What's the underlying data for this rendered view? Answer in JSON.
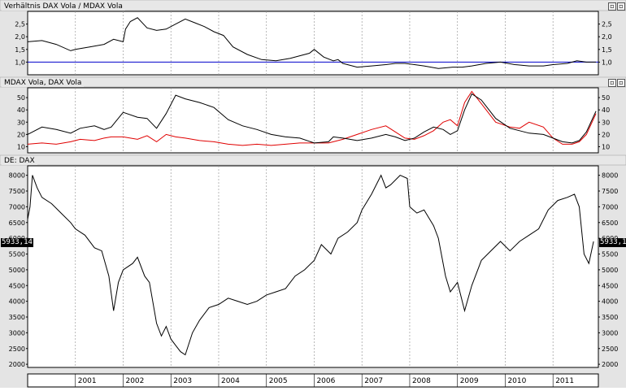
{
  "panels": {
    "ratio": {
      "title": "Verhältnis DAX Vola / MDAX Vola"
    },
    "vola": {
      "title": "MDAX Vola, DAX Vola"
    },
    "dax": {
      "title": "DE: DAX",
      "last_value": "5933,14"
    }
  },
  "x_axis": {
    "years": [
      "2001",
      "2002",
      "2003",
      "2004",
      "2005",
      "2006",
      "2007",
      "2008",
      "2009",
      "2010",
      "2011"
    ]
  },
  "colors": {
    "dax_vola": "#000000",
    "mdax_vola": "#e00000",
    "reference_line": "#0000cc",
    "grid": "#9a9a9a",
    "panel_bg": "#ffffff"
  },
  "chart_data": [
    {
      "type": "line",
      "title": "Verhältnis DAX Vola / MDAX Vola",
      "ylim": [
        0.5,
        3.0
      ],
      "yticks": [
        "1,0",
        "1,5",
        "2,0",
        "2,5"
      ],
      "reference_line": 1.0,
      "x": [
        2000.0,
        2000.3,
        2000.6,
        2000.9,
        2001.0,
        2001.3,
        2001.6,
        2001.8,
        2002.0,
        2002.05,
        2002.15,
        2002.3,
        2002.5,
        2002.7,
        2002.9,
        2003.1,
        2003.3,
        2003.5,
        2003.7,
        2003.9,
        2004.1,
        2004.3,
        2004.6,
        2004.9,
        2005.2,
        2005.5,
        2005.7,
        2005.9,
        2006.0,
        2006.2,
        2006.4,
        2006.5,
        2006.6,
        2006.9,
        2007.2,
        2007.5,
        2007.7,
        2007.9,
        2008.1,
        2008.3,
        2008.6,
        2008.9,
        2009.1,
        2009.3,
        2009.6,
        2009.9,
        2010.2,
        2010.5,
        2010.8,
        2011.0,
        2011.3,
        2011.5,
        2011.7,
        2011.9
      ],
      "series": [
        {
          "values": [
            1.8,
            1.85,
            1.7,
            1.45,
            1.5,
            1.6,
            1.7,
            1.9,
            1.8,
            2.3,
            2.6,
            2.75,
            2.35,
            2.25,
            2.3,
            2.5,
            2.7,
            2.55,
            2.4,
            2.2,
            2.05,
            1.6,
            1.3,
            1.1,
            1.05,
            1.15,
            1.25,
            1.35,
            1.5,
            1.2,
            1.05,
            1.1,
            0.95,
            0.8,
            0.85,
            0.9,
            0.95,
            0.95,
            0.9,
            0.85,
            0.75,
            0.8,
            0.8,
            0.85,
            0.95,
            1.0,
            0.9,
            0.85,
            0.85,
            0.9,
            0.95,
            1.05,
            1.0,
            1.0
          ]
        }
      ]
    },
    {
      "type": "line",
      "title": "MDAX Vola, DAX Vola",
      "ylim": [
        5,
        58
      ],
      "yticks": [
        "10",
        "20",
        "30",
        "40",
        "50"
      ],
      "x": [
        2000.0,
        2000.3,
        2000.6,
        2000.9,
        2001.1,
        2001.4,
        2001.6,
        2001.75,
        2002.0,
        2002.3,
        2002.5,
        2002.7,
        2002.9,
        2003.1,
        2003.3,
        2003.6,
        2003.9,
        2004.2,
        2004.5,
        2004.8,
        2005.1,
        2005.4,
        2005.7,
        2006.0,
        2006.3,
        2006.4,
        2006.6,
        2006.9,
        2007.2,
        2007.5,
        2007.7,
        2007.9,
        2008.1,
        2008.3,
        2008.5,
        2008.7,
        2008.85,
        2009.0,
        2009.15,
        2009.3,
        2009.5,
        2009.8,
        2010.1,
        2010.3,
        2010.5,
        2010.8,
        2011.0,
        2011.2,
        2011.4,
        2011.55,
        2011.7,
        2011.9
      ],
      "series": [
        {
          "name": "DAX Vola",
          "color": "#000000",
          "values": [
            20,
            26,
            24,
            21,
            25,
            27,
            24,
            26,
            38,
            34,
            33,
            25,
            37,
            52,
            49,
            46,
            42,
            32,
            27,
            24,
            20,
            18,
            17,
            13,
            14,
            18,
            17,
            15,
            17,
            20,
            18,
            15,
            17,
            22,
            26,
            24,
            20,
            23,
            40,
            53,
            48,
            33,
            25,
            23,
            21,
            20,
            17,
            14,
            13,
            15,
            22,
            39
          ]
        },
        {
          "name": "MDAX Vola",
          "color": "#e00000",
          "values": [
            12,
            13,
            12,
            14,
            16,
            15,
            17,
            18,
            18,
            16,
            19,
            14,
            20,
            18,
            17,
            15,
            14,
            12,
            11,
            12,
            11,
            12,
            13,
            13,
            13,
            14,
            16,
            20,
            24,
            27,
            22,
            17,
            16,
            19,
            23,
            30,
            32,
            27,
            46,
            55,
            45,
            30,
            26,
            25,
            30,
            26,
            17,
            12,
            12,
            14,
            20,
            37
          ]
        }
      ]
    },
    {
      "type": "line",
      "title": "DE: DAX",
      "ylim": [
        1900,
        8300
      ],
      "yticks": [
        "2000",
        "2500",
        "3000",
        "3500",
        "4000",
        "4500",
        "5000",
        "5500",
        "6000",
        "6500",
        "7000",
        "7500",
        "8000"
      ],
      "last_value": 5933.14,
      "x": [
        2000.0,
        2000.05,
        2000.1,
        2000.2,
        2000.3,
        2000.5,
        2000.7,
        2000.9,
        2001.0,
        2001.2,
        2001.4,
        2001.55,
        2001.7,
        2001.8,
        2001.9,
        2002.0,
        2002.2,
        2002.3,
        2002.45,
        2002.55,
        2002.7,
        2002.8,
        2002.9,
        2003.0,
        2003.1,
        2003.2,
        2003.3,
        2003.45,
        2003.6,
        2003.8,
        2004.0,
        2004.2,
        2004.4,
        2004.6,
        2004.8,
        2005.0,
        2005.2,
        2005.4,
        2005.6,
        2005.8,
        2006.0,
        2006.15,
        2006.35,
        2006.5,
        2006.7,
        2006.9,
        2007.0,
        2007.2,
        2007.4,
        2007.5,
        2007.6,
        2007.8,
        2007.95,
        2008.0,
        2008.15,
        2008.3,
        2008.5,
        2008.6,
        2008.75,
        2008.85,
        2009.0,
        2009.15,
        2009.3,
        2009.5,
        2009.7,
        2009.9,
        2010.1,
        2010.3,
        2010.5,
        2010.7,
        2010.9,
        2011.1,
        2011.3,
        2011.45,
        2011.55,
        2011.65,
        2011.75,
        2011.85
      ],
      "series": [
        {
          "name": "DAX",
          "color": "#000000",
          "values": [
            6600,
            7000,
            8000,
            7600,
            7300,
            7100,
            6800,
            6500,
            6300,
            6100,
            5700,
            5600,
            4800,
            3700,
            4600,
            5000,
            5200,
            5400,
            4800,
            4600,
            3300,
            2900,
            3200,
            2800,
            2600,
            2400,
            2300,
            3000,
            3400,
            3800,
            3900,
            4100,
            4000,
            3900,
            4000,
            4200,
            4300,
            4400,
            4800,
            5000,
            5300,
            5800,
            5500,
            6000,
            6200,
            6500,
            6900,
            7400,
            8000,
            7600,
            7700,
            8000,
            7900,
            7000,
            6800,
            6900,
            6400,
            6000,
            4800,
            4300,
            4600,
            3700,
            4500,
            5300,
            5600,
            5900,
            5600,
            5900,
            6100,
            6300,
            6900,
            7200,
            7300,
            7400,
            7000,
            5500,
            5200,
            5900
          ]
        }
      ]
    }
  ]
}
